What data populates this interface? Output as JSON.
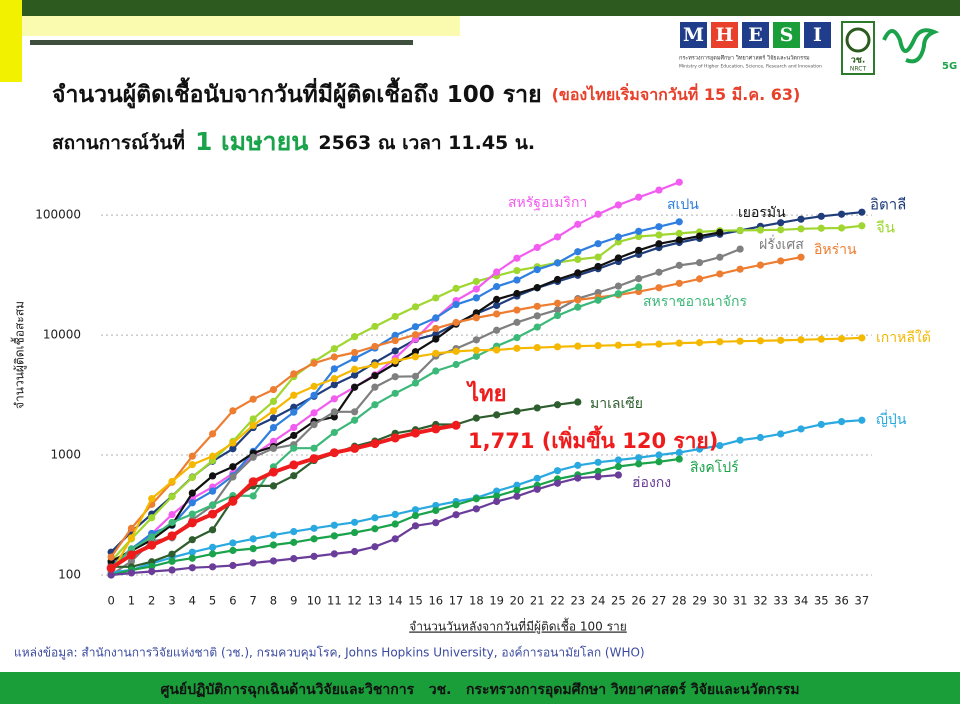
{
  "header": {
    "title": "จำนวนผู้ติดเชื้อนับจากวันที่มีผู้ติดเชื้อถึง 100 ราย",
    "title_note": "(ของไทยเริ่มจากวันที่ 15 มี.ค. 63)",
    "subtitle_prefix": "สถานการณ์วันที่",
    "subtitle_date": "1 เมษายน",
    "subtitle_rest": "2563 ณ เวลา 11.45 น."
  },
  "logo": {
    "letters": [
      "M",
      "H",
      "E",
      "S",
      "I"
    ],
    "ministry_th": "กระทรวงการอุดมศึกษา วิทยาศาสตร์ วิจัยและนวัตกรรม",
    "ministry_en": "Ministry of Higher Education, Science, Research and Innovation",
    "nrct_th": "วช.",
    "nrct_en": "NRCT",
    "tag": "5G"
  },
  "chart_data": {
    "type": "line",
    "y_label": "จำนวนผู้ติดเชื้อสะสม",
    "x_label": "จำนวนวันหลังจากวันที่มีผู้ติดเชื้อ 100 ราย",
    "yscale": "log",
    "grid": true,
    "x": [
      0,
      1,
      2,
      3,
      4,
      5,
      6,
      7,
      8,
      9,
      10,
      11,
      12,
      13,
      14,
      15,
      16,
      17,
      18,
      19,
      20,
      21,
      22,
      23,
      24,
      25,
      26,
      27,
      28,
      29,
      30,
      31,
      32,
      33,
      34,
      35,
      36,
      37
    ],
    "xticks": [
      0,
      1,
      2,
      3,
      4,
      5,
      6,
      7,
      8,
      9,
      10,
      11,
      12,
      13,
      14,
      15,
      16,
      17,
      18,
      19,
      20,
      21,
      22,
      23,
      24,
      25,
      26,
      27,
      28,
      29,
      30,
      31,
      32,
      33,
      34,
      35,
      36,
      37
    ],
    "xlim": [
      -0.5,
      37.5
    ],
    "ylim": [
      100,
      200000
    ],
    "yticks": [
      100,
      1000,
      10000,
      100000
    ],
    "series": [
      {
        "name": "อิตาลี",
        "color": "#1f3d7a",
        "values": [
          155,
          229,
          322,
          453,
          655,
          888,
          1128,
          1694,
          2036,
          2502,
          3089,
          3858,
          4636,
          5883,
          7375,
          9172,
          10149,
          12462,
          15113,
          17660,
          21157,
          24747,
          27980,
          31506,
          35713,
          41035,
          47021,
          53578,
          59138,
          63927,
          69176,
          74386,
          80589,
          86498,
          92472,
          97689,
          101739,
          105792
        ]
      },
      {
        "name": "จีน",
        "color": "#9fd62f",
        "values": [
          130,
          200,
          300,
          450,
          650,
          900,
          1300,
          2000,
          2800,
          4500,
          6000,
          7700,
          9700,
          11800,
          14300,
          17200,
          20400,
          24500,
          28000,
          31200,
          34500,
          37100,
          40200,
          42700,
          44700,
          59800,
          66300,
          68300,
          70400,
          72400,
          74100,
          74500,
          75000,
          75500,
          76900,
          77700,
          78100,
          81500
        ]
      },
      {
        "name": "สหรัฐอเมริกา",
        "color": "#f25cf0",
        "values": [
          124,
          158,
          221,
          319,
          435,
          541,
          704,
          994,
          1301,
          1697,
          2247,
          2943,
          3680,
          4663,
          6411,
          9259,
          13789,
          19383,
          24207,
          33546,
          43734,
          53736,
          65778,
          83836,
          101657,
          121478,
          140886,
          161807,
          188172,
          null,
          null,
          null,
          null,
          null,
          null,
          null,
          null,
          null
        ]
      },
      {
        "name": "สเปน",
        "color": "#2f7fe0",
        "values": [
          120,
          165,
          222,
          259,
          400,
          500,
          673,
          1073,
          1695,
          2277,
          3146,
          5232,
          6391,
          7798,
          9942,
          11748,
          13910,
          17963,
          20410,
          25374,
          28768,
          35136,
          39885,
          49515,
          57786,
          65719,
          73235,
          80110,
          87956,
          null,
          null,
          null,
          null,
          null,
          null,
          null,
          null,
          null
        ]
      },
      {
        "name": "เยอรมัน",
        "color": "#111111",
        "values": [
          130,
          159,
          196,
          262,
          482,
          670,
          799,
          1040,
          1176,
          1457,
          1908,
          2078,
          3675,
          4585,
          5795,
          7272,
          9257,
          12327,
          15320,
          19848,
          22213,
          24873,
          29056,
          32986,
          37323,
          43938,
          50871,
          57695,
          62095,
          66885,
          71808,
          null,
          null,
          null,
          null,
          null,
          null,
          null
        ]
      },
      {
        "name": "ฝรั่งเศส",
        "color": "#7f7f7f",
        "values": [
          100,
          130,
          191,
          204,
          288,
          380,
          656,
          959,
          1136,
          1219,
          1794,
          2293,
          2293,
          3681,
          4496,
          4532,
          6683,
          7715,
          9124,
          10970,
          12758,
          14463,
          16243,
          20123,
          22622,
          25600,
          29551,
          33402,
          38105,
          40174,
          44550,
          52128,
          null,
          null,
          null,
          null,
          null,
          null
        ]
      },
      {
        "name": "อิหร่าน",
        "color": "#ed7d31",
        "values": [
          141,
          245,
          388,
          593,
          978,
          1501,
          2336,
          2922,
          3513,
          4747,
          5823,
          6566,
          7161,
          8042,
          9000,
          10075,
          11364,
          12729,
          13938,
          14991,
          16169,
          17361,
          18407,
          19644,
          20610,
          21638,
          23049,
          24811,
          27017,
          29406,
          32332,
          35408,
          38309,
          41495,
          44605,
          null,
          null,
          null
        ]
      },
      {
        "name": "สหราชอาณาจักร",
        "color": "#3cb878",
        "values": [
          116,
          164,
          207,
          274,
          322,
          384,
          459,
          456,
          798,
          1140,
          1140,
          1543,
          1950,
          2626,
          3269,
          3983,
          5018,
          5683,
          6650,
          8077,
          9529,
          11658,
          14543,
          17089,
          19522,
          22141,
          25150,
          null,
          null,
          null,
          null,
          null,
          null,
          null,
          null,
          null,
          null,
          null
        ]
      },
      {
        "name": "เกาหลีใต้",
        "color": "#f5b800",
        "values": [
          104,
          204,
          433,
          602,
          833,
          977,
          1261,
          1766,
          2337,
          3150,
          3736,
          4335,
          5186,
          5621,
          6088,
          6593,
          7041,
          7313,
          7478,
          7513,
          7755,
          7869,
          7979,
          8086,
          8162,
          8236,
          8320,
          8413,
          8565,
          8652,
          8799,
          8897,
          8961,
          9037,
          9137,
          9241,
          9332,
          9478
        ]
      },
      {
        "name": "ญี่ปุ่น",
        "color": "#29a9e0",
        "values": [
          105,
          110,
          125,
          140,
          155,
          170,
          185,
          200,
          215,
          230,
          245,
          260,
          275,
          300,
          320,
          350,
          380,
          410,
          440,
          500,
          560,
          640,
          740,
          820,
          870,
          910,
          950,
          1000,
          1050,
          1120,
          1200,
          1330,
          1400,
          1500,
          1650,
          1800,
          1900,
          1950
        ]
      },
      {
        "name": "มาเลเซีย",
        "color": "#2e5e2e",
        "values": [
          117,
          117,
          129,
          149,
          197,
          238,
          428,
          553,
          553,
          673,
          900,
          1030,
          1183,
          1306,
          1518,
          1624,
          1796,
          1796,
          2031,
          2161,
          2320,
          2470,
          2626,
          2766,
          null,
          null,
          null,
          null,
          null,
          null,
          null,
          null,
          null,
          null,
          null,
          null,
          null,
          null
        ]
      },
      {
        "name": "สิงคโปร์",
        "color": "#1aa34a",
        "values": [
          100,
          110,
          118,
          130,
          138,
          150,
          160,
          166,
          178,
          187,
          200,
          212,
          226,
          243,
          266,
          313,
          345,
          385,
          432,
          455,
          509,
          558,
          631,
          683,
          732,
          802,
          844,
          879,
          926,
          null,
          null,
          null,
          null,
          null,
          null,
          null,
          null,
          null
        ]
      },
      {
        "name": "ฮ่องกง",
        "color": "#6a3d9a",
        "values": [
          100,
          104,
          107,
          110,
          115,
          117,
          120,
          126,
          131,
          137,
          143,
          150,
          157,
          172,
          200,
          257,
          273,
          318,
          356,
          410,
          453,
          518,
          582,
          642,
          660,
          682,
          null,
          null,
          null,
          null,
          null,
          null,
          null,
          null,
          null,
          null,
          null,
          null
        ]
      },
      {
        "name": "ไทย",
        "color": "#ee1c1c",
        "values": [
          114,
          147,
          177,
          212,
          272,
          322,
          411,
          599,
          721,
          827,
          934,
          1045,
          1136,
          1245,
          1388,
          1524,
          1651,
          1771,
          null,
          null,
          null,
          null,
          null,
          null,
          null,
          null,
          null,
          null,
          null,
          null,
          null,
          null,
          null,
          null,
          null,
          null,
          null,
          null
        ]
      }
    ],
    "annotations": [
      "1,771 (เพิ่มขึ้น 120 ราย)"
    ]
  },
  "source": "แหล่งข้อมูล: สำนักงานการวิจัยแห่งชาติ (วช.), กรมควบคุมโรค, Johns Hopkins University, องค์การอนามัยโลก (WHO)",
  "footer": "ศูนย์ปฏิบัติการฉุกเฉินด้านวิจัยและวิชาการ   วช.   กระทรวงการอุดมศึกษา วิทยาศาสตร์ วิจัยและนวัตกรรม"
}
